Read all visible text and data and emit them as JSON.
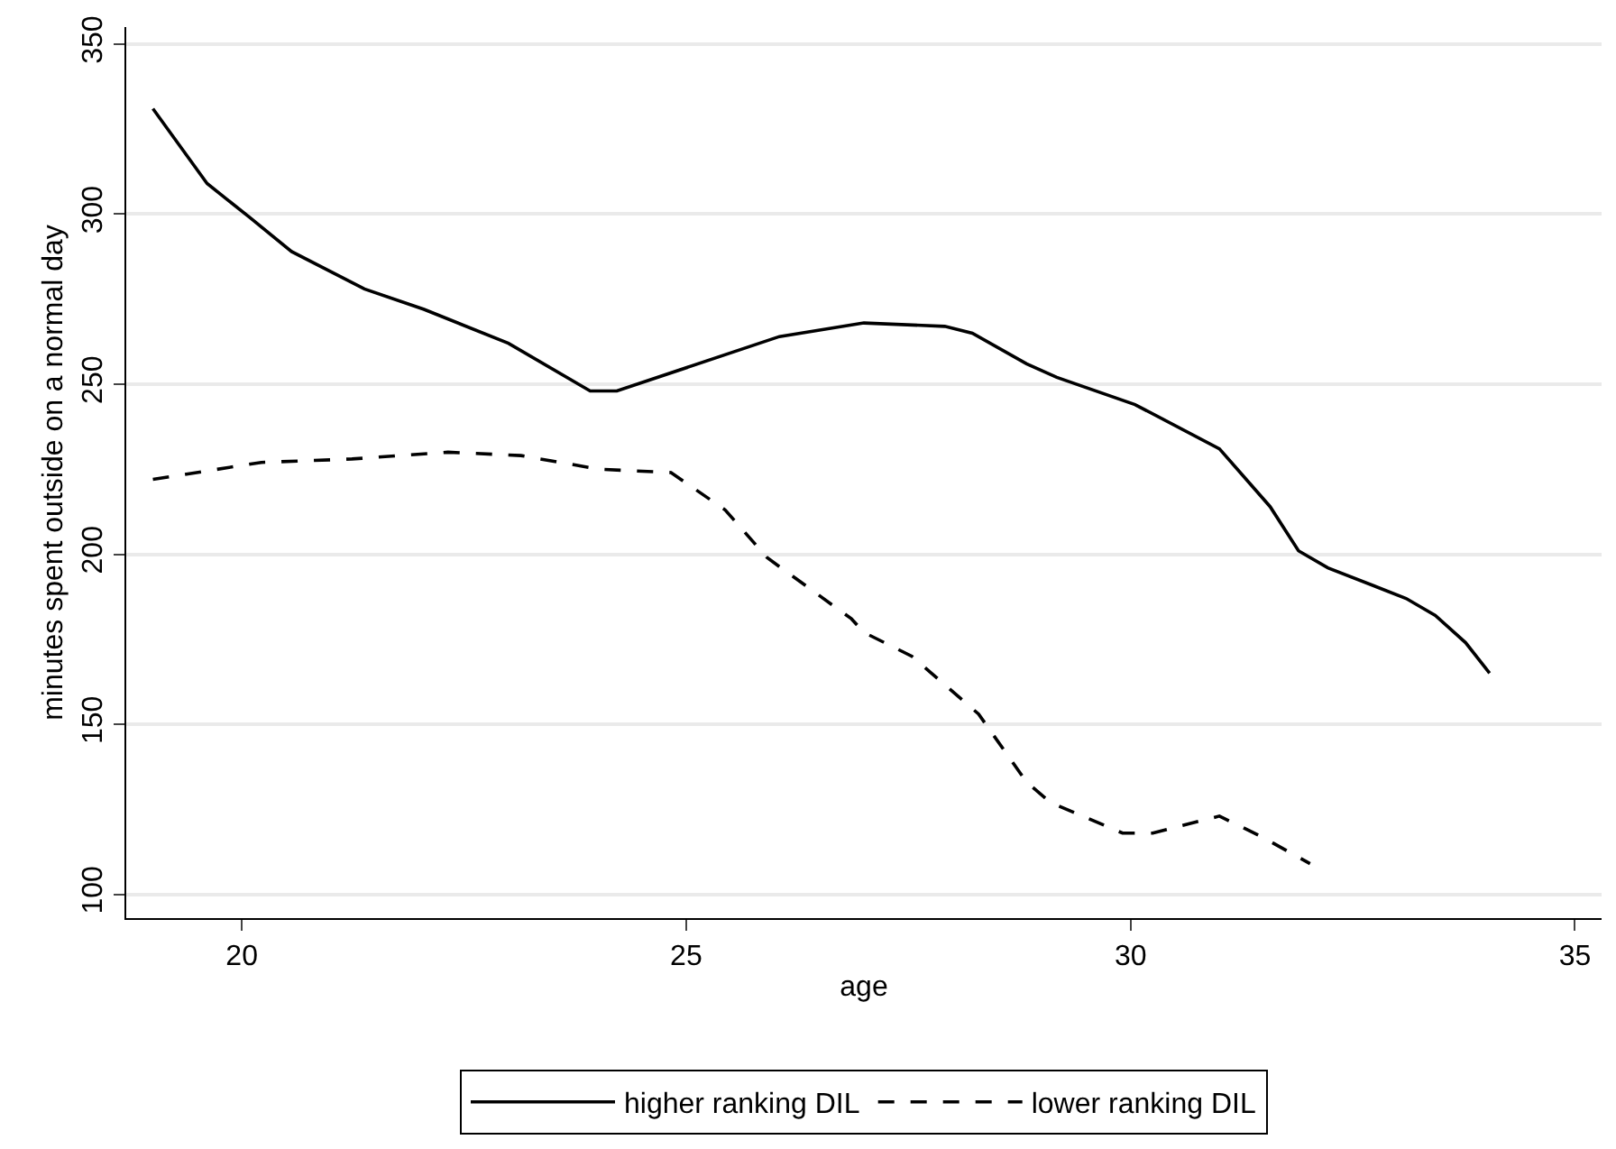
{
  "chart_data": {
    "type": "line",
    "xlabel": "age",
    "ylabel": "minutes spent outside on a normal day",
    "xlim": [
      18.7,
      35.3
    ],
    "xticks": [
      20,
      25,
      30,
      35
    ],
    "ylim": [
      93,
      355
    ],
    "yticks": [
      100,
      150,
      200,
      250,
      300,
      350
    ],
    "grid": "y",
    "legend": "bottom",
    "marker": "none",
    "series": [
      {
        "name": "higher ranking DIL",
        "color": "#000000",
        "line_style": "solid",
        "x": [
          19.0,
          19.61,
          20.09,
          20.56,
          21.38,
          22.05,
          23.0,
          23.92,
          24.22,
          26.05,
          27.0,
          27.91,
          28.22,
          28.83,
          29.17,
          30.05,
          31.0,
          31.57,
          31.89,
          32.22,
          33.1,
          33.43,
          33.77,
          34.04
        ],
        "values": [
          331,
          309,
          299,
          289,
          278,
          272,
          262,
          248,
          248,
          264,
          268,
          267,
          265,
          256,
          252,
          244,
          231,
          214,
          201,
          196,
          187,
          182,
          174,
          165
        ]
      },
      {
        "name": "lower ranking DIL",
        "color": "#000000",
        "line_style": "dashed",
        "x": [
          19.0,
          20.22,
          21.24,
          22.32,
          23.14,
          24.02,
          24.83,
          25.44,
          25.91,
          26.86,
          27.0,
          27.54,
          28.29,
          28.83,
          29.1,
          29.91,
          30.25,
          31.0,
          31.47,
          32.02
        ],
        "values": [
          222,
          227,
          228,
          230,
          229,
          225,
          224,
          213,
          199,
          181,
          177,
          170,
          153,
          133,
          127,
          118,
          118,
          123,
          117,
          109
        ]
      }
    ]
  }
}
